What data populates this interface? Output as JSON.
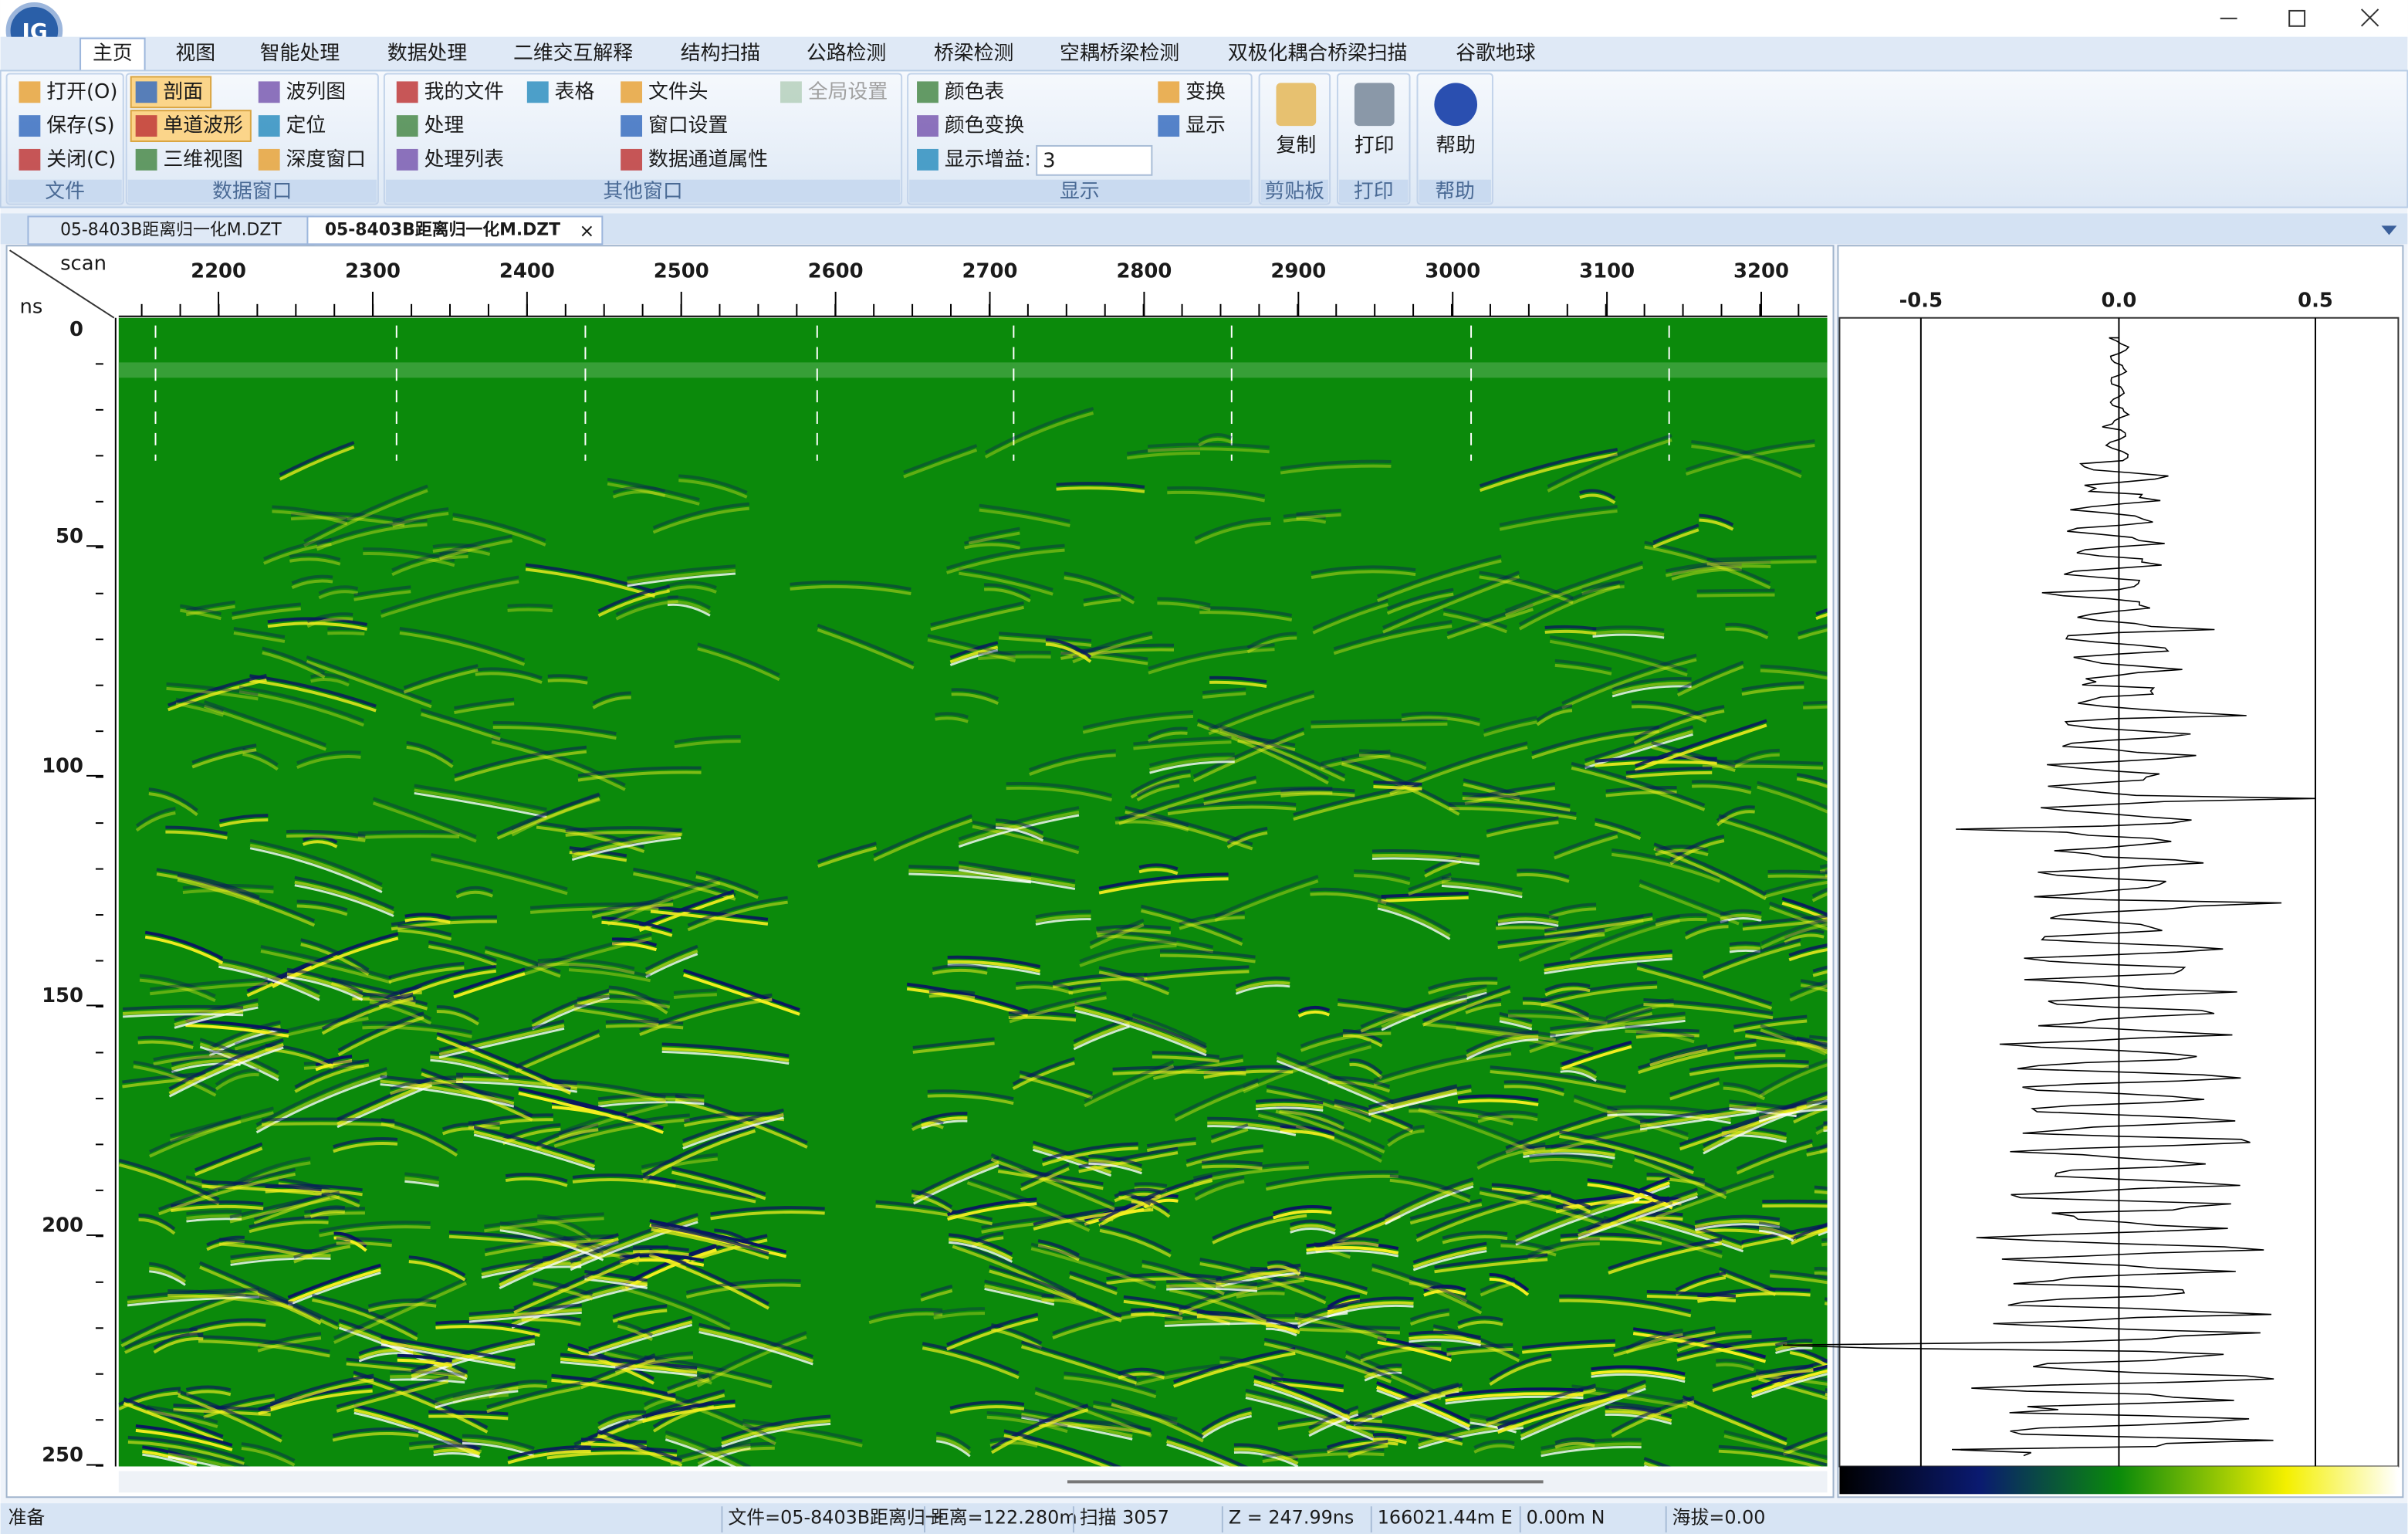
{
  "menu_tabs": [
    "主页",
    "视图",
    "智能处理",
    "数据处理",
    "二维交互解释",
    "结构扫描",
    "公路检测",
    "桥梁检测",
    "空耦桥梁检测",
    "双极化耦合桥梁扫描",
    "谷歌地球"
  ],
  "ribbon": {
    "groups": [
      {
        "label": "文件",
        "buttons": [
          "打开(O)",
          "保存(S)",
          "关闭(C)"
        ]
      },
      {
        "label": "数据窗口",
        "buttons": [
          "剖面",
          "单道波形",
          "三维视图",
          "波列图",
          "定位",
          "深度窗口"
        ]
      },
      {
        "label": "其他窗口",
        "buttons": [
          "我的文件",
          "处理",
          "处理列表",
          "表格",
          "文件头",
          "窗口设置",
          "数据通道属性",
          "全局设置"
        ]
      },
      {
        "label": "显示",
        "buttons": [
          "颜色表",
          "颜色变换",
          "显示增益:",
          "变换",
          "显示"
        ],
        "gain_value": "3"
      },
      {
        "label": "剪贴板",
        "buttons": [
          "复制"
        ]
      },
      {
        "label": "打印",
        "buttons": [
          "打印"
        ]
      },
      {
        "label": "帮助",
        "buttons": [
          "帮助"
        ]
      }
    ]
  },
  "doc_tabs": [
    "05-8403B距离归一化M.DZT",
    "05-8403B距离归一化M.DZT"
  ],
  "radargram": {
    "x_label": "scan",
    "y_label": "ns",
    "x_ticks": [
      "2200",
      "2300",
      "2400",
      "2500",
      "2600",
      "2700",
      "2800",
      "2900",
      "3000",
      "3100",
      "3200"
    ],
    "y_ticks": [
      "0",
      "50",
      "100",
      "150",
      "200",
      "250"
    ]
  },
  "trace": {
    "x_ticks": [
      "-0.5",
      "0.0",
      "0.5"
    ]
  },
  "status_bar": [
    "准备",
    "文件=05-8403B距离归一",
    "距离=122.280m",
    "扫描 3057",
    "Z = 247.99ns",
    "166021.44m E",
    "0.00m N",
    "海拔=0.00"
  ]
}
